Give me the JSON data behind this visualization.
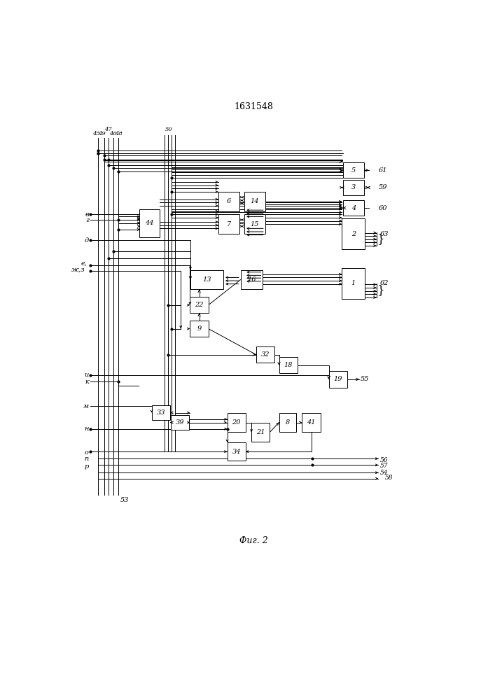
{
  "title": "1631548",
  "caption": "Фиг. 2",
  "bg_color": "#ffffff",
  "lw": 0.7,
  "boxes": {
    "5": [
      0.76,
      0.84,
      0.055,
      0.028
    ],
    "3": [
      0.76,
      0.808,
      0.055,
      0.028
    ],
    "4": [
      0.76,
      0.77,
      0.055,
      0.028
    ],
    "2": [
      0.76,
      0.722,
      0.06,
      0.058
    ],
    "1": [
      0.76,
      0.63,
      0.06,
      0.058
    ],
    "6": [
      0.435,
      0.782,
      0.055,
      0.036
    ],
    "14": [
      0.503,
      0.782,
      0.055,
      0.036
    ],
    "7": [
      0.435,
      0.74,
      0.055,
      0.036
    ],
    "15": [
      0.503,
      0.74,
      0.055,
      0.036
    ],
    "44": [
      0.228,
      0.742,
      0.052,
      0.052
    ],
    "13": [
      0.378,
      0.637,
      0.085,
      0.036
    ],
    "16": [
      0.495,
      0.637,
      0.058,
      0.036
    ],
    "22": [
      0.358,
      0.59,
      0.048,
      0.03
    ],
    "9": [
      0.358,
      0.546,
      0.048,
      0.03
    ],
    "32": [
      0.53,
      0.498,
      0.048,
      0.03
    ],
    "18": [
      0.59,
      0.478,
      0.048,
      0.03
    ],
    "19": [
      0.72,
      0.452,
      0.048,
      0.03
    ],
    "33": [
      0.258,
      0.39,
      0.048,
      0.028
    ],
    "39": [
      0.308,
      0.372,
      0.048,
      0.028
    ],
    "20": [
      0.455,
      0.372,
      0.048,
      0.034
    ],
    "21": [
      0.518,
      0.354,
      0.048,
      0.034
    ],
    "8": [
      0.588,
      0.372,
      0.044,
      0.034
    ],
    "41": [
      0.65,
      0.372,
      0.048,
      0.034
    ],
    "34": [
      0.455,
      0.318,
      0.048,
      0.034
    ]
  }
}
